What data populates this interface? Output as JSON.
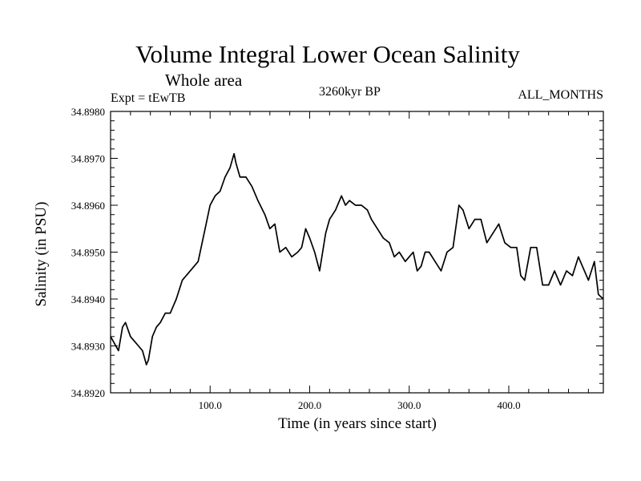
{
  "header": {
    "title": "Volume Integral Lower Ocean Salinity",
    "subtitle": "Whole area",
    "left_label": "Expt = tEwTB",
    "center_label": "3260kyr BP",
    "right_label": "ALL_MONTHS"
  },
  "chart_data": {
    "type": "line",
    "title": "Volume Integral Lower Ocean Salinity",
    "subtitle": "Whole area",
    "xlabel": "Time (in years since start)",
    "ylabel": "Salinity (in PSU)",
    "xlim": [
      0,
      495
    ],
    "ylim": [
      34.892,
      34.898
    ],
    "x_ticks": [
      100,
      200,
      300,
      400
    ],
    "x_tick_labels": [
      "100.0",
      "200.0",
      "300.0",
      "400.0"
    ],
    "y_ticks": [
      34.892,
      34.893,
      34.894,
      34.895,
      34.896,
      34.897,
      34.898
    ],
    "y_tick_labels": [
      "34.8920",
      "34.8930",
      "34.8940",
      "34.8950",
      "34.8960",
      "34.8970",
      "34.8980"
    ],
    "grid": false,
    "series": [
      {
        "name": "Salinity",
        "x": [
          0,
          8,
          12,
          15,
          20,
          24,
          28,
          32,
          36,
          38,
          42,
          46,
          50,
          55,
          60,
          66,
          72,
          80,
          88,
          95,
          100,
          105,
          110,
          115,
          120,
          124,
          126,
          130,
          136,
          142,
          148,
          155,
          160,
          165,
          170,
          176,
          182,
          188,
          192,
          196,
          200,
          205,
          210,
          216,
          220,
          226,
          232,
          236,
          240,
          246,
          252,
          258,
          262,
          268,
          274,
          280,
          285,
          290,
          296,
          300,
          304,
          308,
          312,
          316,
          320,
          326,
          332,
          338,
          344,
          350,
          354,
          360,
          366,
          372,
          378,
          384,
          390,
          396,
          402,
          408,
          412,
          416,
          422,
          428,
          434,
          440,
          446,
          452,
          458,
          464,
          470,
          476,
          480,
          486,
          490,
          495
        ],
        "y": [
          34.8932,
          34.8929,
          34.8934,
          34.8935,
          34.8932,
          34.8931,
          34.893,
          34.8929,
          34.8926,
          34.8927,
          34.8932,
          34.8934,
          34.8935,
          34.8937,
          34.8937,
          34.894,
          34.8944,
          34.8946,
          34.8948,
          34.8955,
          34.896,
          34.8962,
          34.8963,
          34.8966,
          34.8968,
          34.8971,
          34.8969,
          34.8966,
          34.8966,
          34.8964,
          34.8961,
          34.8958,
          34.8955,
          34.8956,
          34.895,
          34.8951,
          34.8949,
          34.895,
          34.8951,
          34.8955,
          34.8953,
          34.895,
          34.8946,
          34.8954,
          34.8957,
          34.8959,
          34.8962,
          34.896,
          34.8961,
          34.896,
          34.896,
          34.8959,
          34.8957,
          34.8955,
          34.8953,
          34.8952,
          34.8949,
          34.895,
          34.8948,
          34.8949,
          34.895,
          34.8946,
          34.8947,
          34.895,
          34.895,
          34.8948,
          34.8946,
          34.895,
          34.8951,
          34.896,
          34.8959,
          34.8955,
          34.8957,
          34.8957,
          34.8952,
          34.8954,
          34.8956,
          34.8952,
          34.8951,
          34.8951,
          34.8945,
          34.8944,
          34.8951,
          34.8951,
          34.8943,
          34.8943,
          34.8946,
          34.8943,
          34.8946,
          34.8945,
          34.8949,
          34.8946,
          34.8944,
          34.8948,
          34.8941,
          34.894
        ]
      }
    ]
  }
}
